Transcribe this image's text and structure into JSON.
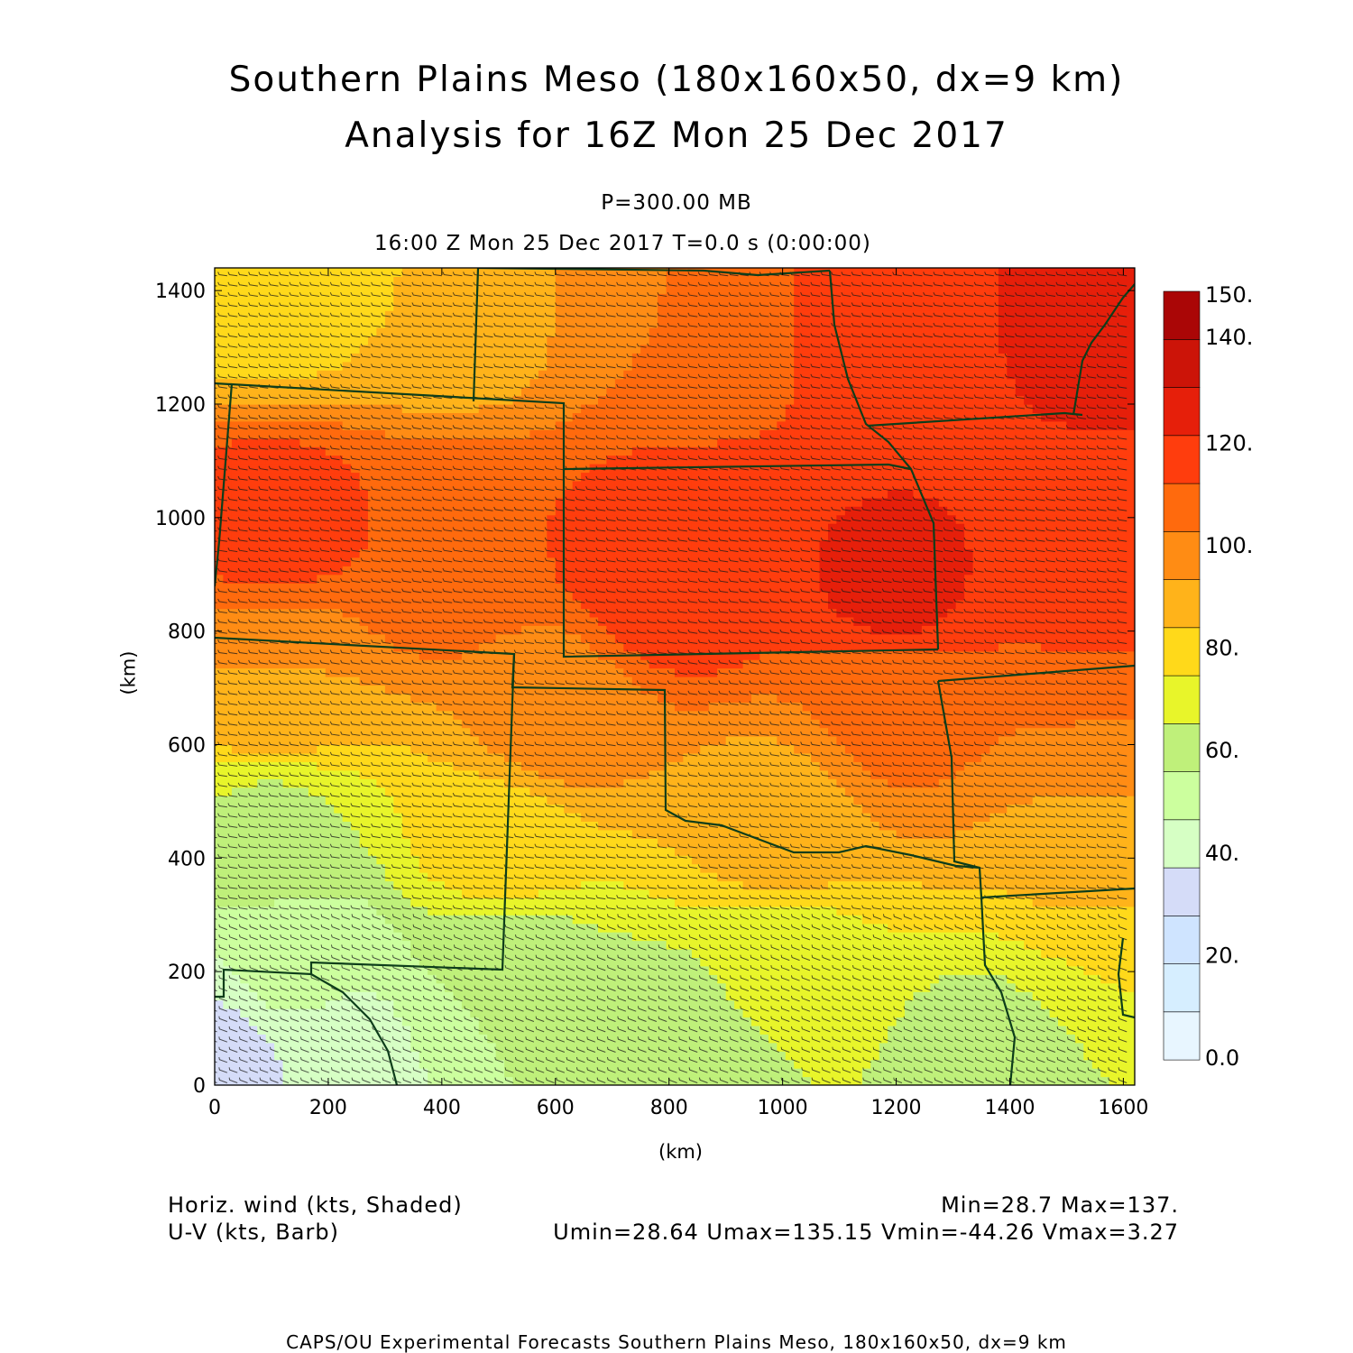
{
  "header": {
    "title_line1": "Southern Plains Meso (180x160x50, dx=9 km)",
    "title_line2": "Analysis for 16Z Mon 25 Dec 2017",
    "level": "P=300.00 MB",
    "time": "16:00 Z Mon 25 Dec 2017    T=0.0 s (0:00:00)"
  },
  "footer": {
    "field1": "Horiz. wind (kts, Shaded)",
    "field2": "U-V (kts, Barb)",
    "stats1": "Min=28.7 Max=137.",
    "stats2": "Umin=28.64 Umax=135.15 Vmin=-44.26 Vmax=3.27",
    "credit": "CAPS/OU Experimental Forecasts  Southern Plains Meso, 180x160x50, dx=9 km"
  },
  "colors": {
    "state_lines": "#0d3d1a",
    "barbs": "#1a1a1a"
  },
  "chart_data": {
    "type": "heatmap",
    "xlabel": "(km)",
    "ylabel": "(km)",
    "xlim": [
      0,
      1620
    ],
    "ylim": [
      0,
      1440
    ],
    "xticks": [
      0,
      200,
      400,
      600,
      800,
      1000,
      1200,
      1400,
      1600
    ],
    "yticks": [
      0,
      200,
      400,
      600,
      800,
      1000,
      1200,
      1400
    ],
    "colorbar": {
      "levels": [
        0,
        10,
        20,
        30,
        40,
        50,
        60,
        70,
        80,
        90,
        100,
        110,
        120,
        130,
        140,
        150
      ],
      "labels": [
        "0.0",
        "20.",
        "40.",
        "60.",
        "80.",
        "100.",
        "120.",
        "140.",
        "150."
      ],
      "colors": [
        "#e8f6ff",
        "#d6eeff",
        "#cfe4ff",
        "#d5dcf8",
        "#d6ffc4",
        "#ccff9e",
        "#bff07a",
        "#e8f52a",
        "#ffd91a",
        "#ffb31a",
        "#ff8c14",
        "#ff6a0d",
        "#ff3d0d",
        "#e61f0a",
        "#cc1408",
        "#aa0606"
      ]
    },
    "field_min": 28.7,
    "field_max": 137,
    "umin": 28.64,
    "umax": 135.15,
    "vmin": -44.26,
    "vmax": 3.27,
    "speed_field_samples": [
      {
        "x": 100,
        "y": 1380,
        "speed": 85
      },
      {
        "x": 400,
        "y": 1380,
        "speed": 90
      },
      {
        "x": 800,
        "y": 1380,
        "speed": 110
      },
      {
        "x": 1200,
        "y": 1380,
        "speed": 125
      },
      {
        "x": 1550,
        "y": 1400,
        "speed": 135
      },
      {
        "x": 100,
        "y": 1000,
        "speed": 125
      },
      {
        "x": 400,
        "y": 950,
        "speed": 120
      },
      {
        "x": 800,
        "y": 900,
        "speed": 130
      },
      {
        "x": 1200,
        "y": 880,
        "speed": 132
      },
      {
        "x": 1550,
        "y": 880,
        "speed": 128
      },
      {
        "x": 100,
        "y": 700,
        "speed": 100
      },
      {
        "x": 600,
        "y": 650,
        "speed": 105
      },
      {
        "x": 1200,
        "y": 650,
        "speed": 112
      },
      {
        "x": 1550,
        "y": 650,
        "speed": 110
      },
      {
        "x": 100,
        "y": 450,
        "speed": 68
      },
      {
        "x": 500,
        "y": 420,
        "speed": 85
      },
      {
        "x": 1000,
        "y": 450,
        "speed": 95
      },
      {
        "x": 1550,
        "y": 400,
        "speed": 95
      },
      {
        "x": 150,
        "y": 200,
        "speed": 52
      },
      {
        "x": 500,
        "y": 200,
        "speed": 60
      },
      {
        "x": 1000,
        "y": 200,
        "speed": 72
      },
      {
        "x": 1550,
        "y": 200,
        "speed": 80
      },
      {
        "x": 200,
        "y": 50,
        "speed": 45
      },
      {
        "x": 800,
        "y": 50,
        "speed": 60
      },
      {
        "x": 1400,
        "y": 50,
        "speed": 62
      },
      {
        "x": 20,
        "y": 10,
        "speed": 30
      }
    ]
  }
}
